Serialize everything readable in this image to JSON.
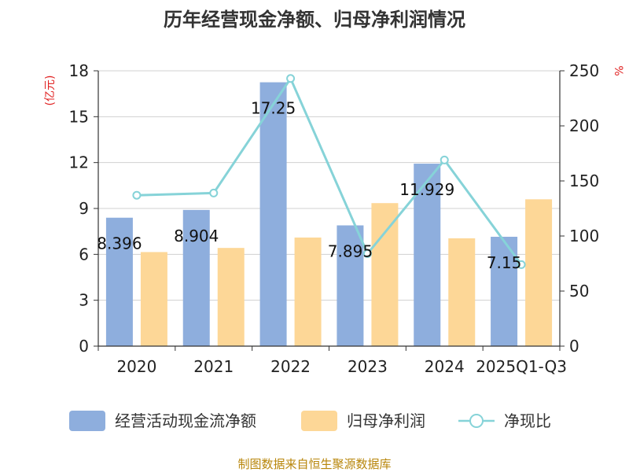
{
  "title": "历年经营现金净额、归母净利润情况",
  "source": "制图数据来自恒生聚源数据库",
  "colors": {
    "cash_flow": "#8eaedd",
    "net_profit": "#fdd797",
    "ratio": "#86d3d8",
    "axis": "#333333",
    "grid": "#d0d0d0",
    "unit": "#e02020"
  },
  "chart_data": {
    "type": "bar",
    "title": "历年经营现金净额、归母净利润情况",
    "categories": [
      "2020",
      "2021",
      "2022",
      "2023",
      "2024",
      "2025Q1-Q3"
    ],
    "series": [
      {
        "name": "经营活动现金流净额",
        "type": "bar",
        "axis": "left",
        "values": [
          8.396,
          8.904,
          17.25,
          7.895,
          11.929,
          7.15
        ],
        "labels": [
          "8.396",
          "8.904",
          "17.25",
          "7.895",
          "11.929",
          "7.15"
        ]
      },
      {
        "name": "归母净利润",
        "type": "bar",
        "axis": "left",
        "values": [
          6.15,
          6.42,
          7.1,
          9.35,
          7.05,
          9.6
        ]
      },
      {
        "name": "净现比",
        "type": "line",
        "axis": "right",
        "values": [
          137,
          139,
          243,
          84,
          169,
          74
        ]
      }
    ],
    "y_left": {
      "label": "(亿元)",
      "ylim": [
        0,
        18
      ],
      "ticks": [
        0,
        3,
        6,
        9,
        12,
        15,
        18
      ]
    },
    "y_right": {
      "label": "%",
      "ylim": [
        0,
        250
      ],
      "ticks": [
        0,
        50,
        100,
        150,
        200,
        250
      ]
    },
    "grid": true,
    "legend_position": "bottom"
  }
}
